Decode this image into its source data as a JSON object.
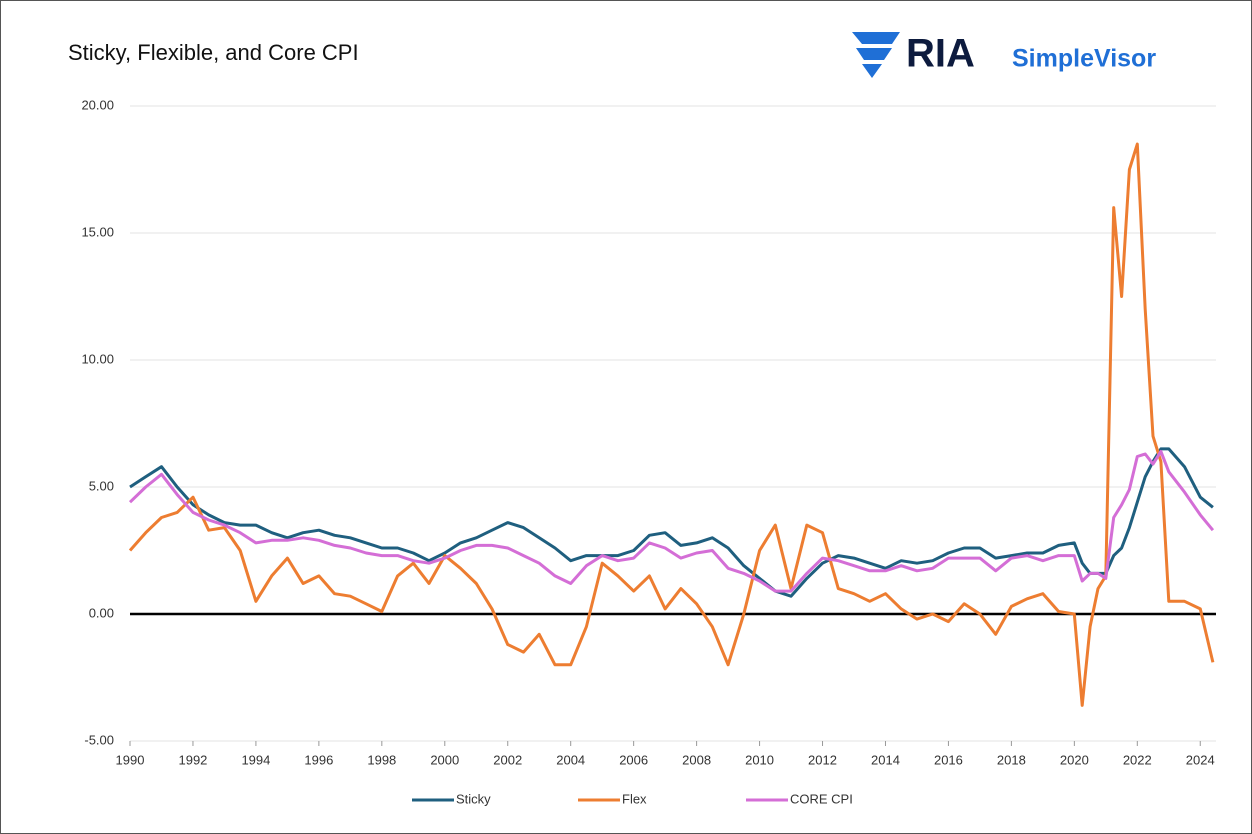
{
  "logo": {
    "brand": "RIA",
    "product": "SimpleVisor"
  },
  "chart_data": {
    "type": "line",
    "title": "Sticky, Flexible, and Core CPI",
    "x": [
      1990,
      1990.5,
      1991,
      1991.5,
      1992,
      1992.5,
      1993,
      1993.5,
      1994,
      1994.5,
      1995,
      1995.5,
      1996,
      1996.5,
      1997,
      1997.5,
      1998,
      1998.5,
      1999,
      1999.5,
      2000,
      2000.5,
      2001,
      2001.5,
      2002,
      2002.5,
      2003,
      2003.5,
      2004,
      2004.5,
      2005,
      2005.5,
      2006,
      2006.5,
      2007,
      2007.5,
      2008,
      2008.5,
      2009,
      2009.5,
      2010,
      2010.5,
      2011,
      2011.5,
      2012,
      2012.5,
      2013,
      2013.5,
      2014,
      2014.5,
      2015,
      2015.5,
      2016,
      2016.5,
      2017,
      2017.5,
      2018,
      2018.5,
      2019,
      2019.5,
      2020,
      2020.25,
      2020.5,
      2020.75,
      2021,
      2021.25,
      2021.5,
      2021.75,
      2022,
      2022.25,
      2022.5,
      2022.75,
      2023,
      2023.5,
      2024,
      2024.4
    ],
    "series": [
      {
        "name": "Sticky",
        "color": "#1f5f7f",
        "values": [
          5.0,
          5.4,
          5.8,
          5.0,
          4.3,
          3.9,
          3.6,
          3.5,
          3.5,
          3.2,
          3.0,
          3.2,
          3.3,
          3.1,
          3.0,
          2.8,
          2.6,
          2.6,
          2.4,
          2.1,
          2.4,
          2.8,
          3.0,
          3.3,
          3.6,
          3.4,
          3.0,
          2.6,
          2.1,
          2.3,
          2.3,
          2.3,
          2.5,
          3.1,
          3.2,
          2.7,
          2.8,
          3.0,
          2.6,
          1.9,
          1.4,
          0.9,
          0.7,
          1.4,
          2.0,
          2.3,
          2.2,
          2.0,
          1.8,
          2.1,
          2.0,
          2.1,
          2.4,
          2.6,
          2.6,
          2.2,
          2.3,
          2.4,
          2.4,
          2.7,
          2.8,
          2.0,
          1.6,
          1.6,
          1.6,
          2.3,
          2.6,
          3.4,
          4.4,
          5.4,
          6.0,
          6.5,
          6.5,
          5.8,
          4.6,
          4.2
        ]
      },
      {
        "name": "Flex",
        "color": "#ed7d31",
        "values": [
          2.5,
          3.2,
          3.8,
          4.0,
          4.6,
          3.3,
          3.4,
          2.5,
          0.5,
          1.5,
          2.2,
          1.2,
          1.5,
          0.8,
          0.7,
          0.4,
          0.1,
          1.5,
          2.0,
          1.2,
          2.3,
          1.8,
          1.2,
          0.2,
          -1.2,
          -1.5,
          -0.8,
          -2.0,
          -2.0,
          -0.5,
          2.0,
          1.5,
          0.9,
          1.5,
          0.2,
          1.0,
          0.4,
          -0.5,
          -2.0,
          0.0,
          2.5,
          3.5,
          1.0,
          3.5,
          3.2,
          1.0,
          0.8,
          0.5,
          0.8,
          0.2,
          -0.2,
          0.0,
          -0.3,
          0.4,
          0.0,
          -0.8,
          0.3,
          0.6,
          0.8,
          0.1,
          0.0,
          -3.6,
          -0.5,
          1.0,
          1.5,
          16.0,
          12.5,
          17.5,
          18.5,
          12.0,
          7.0,
          6.0,
          0.5,
          0.5,
          0.2,
          -1.9
        ]
      },
      {
        "name": "CORE CPI",
        "color": "#d46ed6",
        "values": [
          4.4,
          5.0,
          5.5,
          4.7,
          4.0,
          3.7,
          3.5,
          3.2,
          2.8,
          2.9,
          2.9,
          3.0,
          2.9,
          2.7,
          2.6,
          2.4,
          2.3,
          2.3,
          2.1,
          2.0,
          2.2,
          2.5,
          2.7,
          2.7,
          2.6,
          2.3,
          2.0,
          1.5,
          1.2,
          1.9,
          2.3,
          2.1,
          2.2,
          2.8,
          2.6,
          2.2,
          2.4,
          2.5,
          1.8,
          1.6,
          1.3,
          0.9,
          0.9,
          1.6,
          2.2,
          2.1,
          1.9,
          1.7,
          1.7,
          1.9,
          1.7,
          1.8,
          2.2,
          2.2,
          2.2,
          1.7,
          2.2,
          2.3,
          2.1,
          2.3,
          2.3,
          1.3,
          1.6,
          1.6,
          1.4,
          3.8,
          4.3,
          4.9,
          6.2,
          6.3,
          5.9,
          6.4,
          5.6,
          4.8,
          3.9,
          3.3
        ]
      }
    ],
    "xlim": [
      1990,
      2024.5
    ],
    "xticks": [
      1990,
      1992,
      1994,
      1996,
      1998,
      2000,
      2002,
      2004,
      2006,
      2008,
      2010,
      2012,
      2014,
      2016,
      2018,
      2020,
      2022,
      2024
    ],
    "ylim": [
      -5,
      20
    ],
    "yticks": [
      {
        "value": -5,
        "label": "-5.00"
      },
      {
        "value": 0,
        "label": "0.00"
      },
      {
        "value": 5,
        "label": "5.00"
      },
      {
        "value": 10,
        "label": "10.00"
      },
      {
        "value": 15,
        "label": "15.00"
      },
      {
        "value": 20,
        "label": "20.00"
      }
    ],
    "grid": true,
    "legend": "bottom"
  }
}
